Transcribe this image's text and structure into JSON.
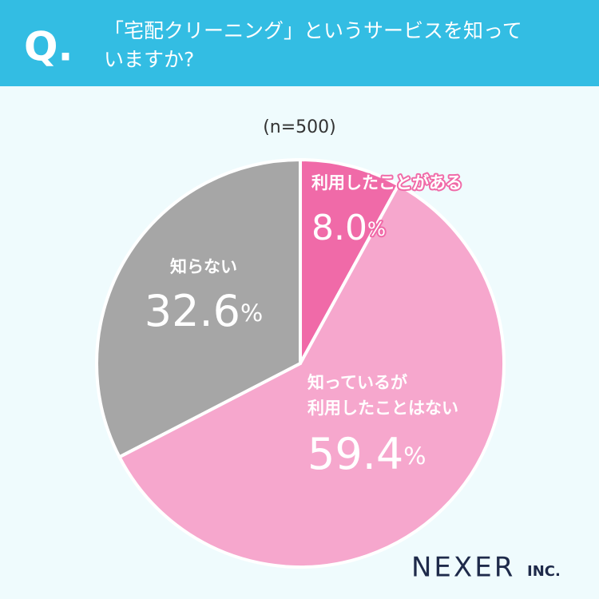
{
  "chart_data": {
    "type": "pie",
    "question_mark": "Q.",
    "title": "「宅配クリーニング」というサービスを知って\nいますか?",
    "subtitle": "(n=500)",
    "categories": [
      "利用したことがある",
      "知っているが\n利用したことはない",
      "知らない"
    ],
    "values": [
      8.0,
      59.4,
      32.6
    ],
    "value_labels": [
      "8.0%",
      "59.4%",
      "32.6%"
    ],
    "colors": [
      "#f06aa8",
      "#f6a7cd",
      "#a6a6a6"
    ],
    "logo": [
      "NEXER",
      "INC."
    ]
  }
}
